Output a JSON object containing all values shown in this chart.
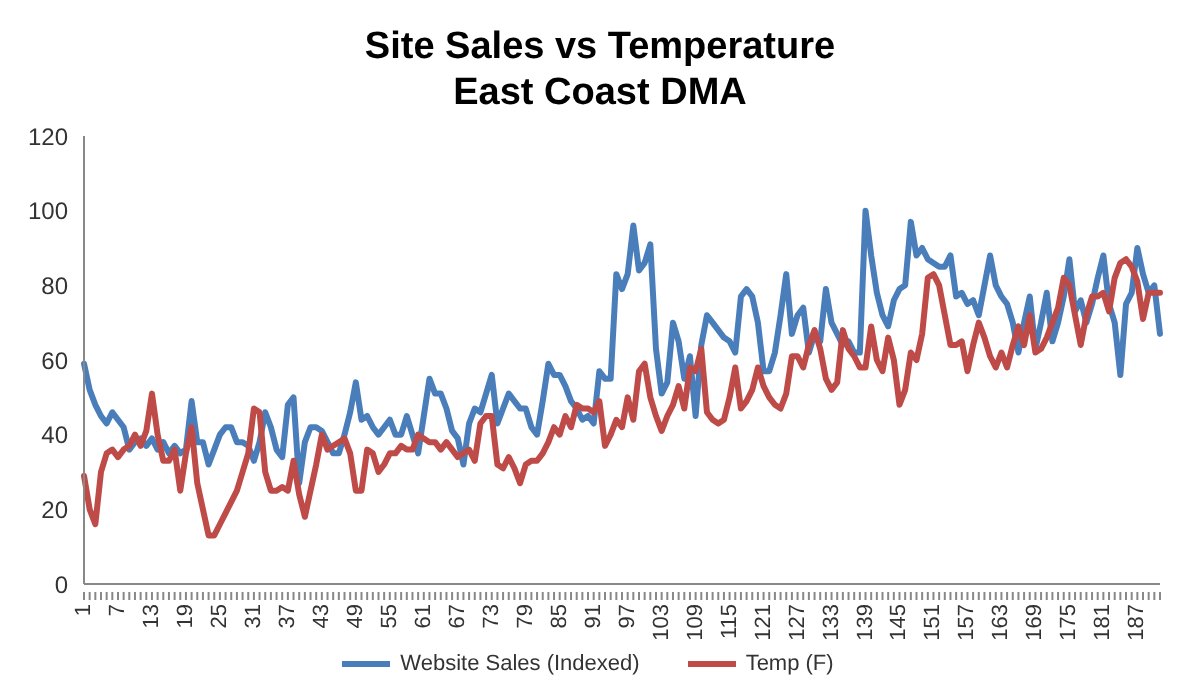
{
  "chart_data": {
    "type": "line",
    "title": "Site Sales vs Temperature",
    "subtitle": "East Coast DMA",
    "categories": [
      "1",
      null,
      null,
      null,
      null,
      null,
      "7",
      null,
      null,
      null,
      null,
      null,
      "13",
      null,
      null,
      null,
      null,
      null,
      "19",
      null,
      null,
      null,
      null,
      null,
      "25",
      null,
      null,
      null,
      null,
      null,
      "31",
      null,
      null,
      null,
      null,
      null,
      "37",
      null,
      null,
      null,
      null,
      null,
      "43",
      null,
      null,
      null,
      null,
      null,
      "49",
      null,
      null,
      null,
      null,
      null,
      "55",
      null,
      null,
      null,
      null,
      null,
      "61",
      null,
      null,
      null,
      null,
      null,
      "67",
      null,
      null,
      null,
      null,
      null,
      "73",
      null,
      null,
      null,
      null,
      null,
      "79",
      null,
      null,
      null,
      null,
      null,
      "85",
      null,
      null,
      null,
      null,
      null,
      "91",
      null,
      null,
      null,
      null,
      null,
      "97",
      null,
      null,
      null,
      null,
      null,
      "103",
      null,
      null,
      null,
      null,
      null,
      "109",
      null,
      null,
      null,
      null,
      null,
      "115",
      null,
      null,
      null,
      null,
      null,
      "121",
      null,
      null,
      null,
      null,
      null,
      "127",
      null,
      null,
      null,
      null,
      null,
      "133",
      null,
      null,
      null,
      null,
      null,
      "139",
      null,
      null,
      null,
      null,
      null,
      "145",
      null,
      null,
      null,
      null,
      null,
      "151",
      null,
      null,
      null,
      null,
      null,
      "157",
      null,
      null,
      null,
      null,
      null,
      "163",
      null,
      null,
      null,
      null,
      null,
      "169",
      null,
      null,
      null,
      null,
      null,
      "175",
      null,
      null,
      null,
      null,
      null,
      "181",
      null,
      null,
      null,
      null,
      null,
      "187",
      null,
      null,
      null,
      null
    ],
    "series": [
      {
        "name": "Website Sales (Indexed)",
        "color": "#4a7ebb",
        "values": [
          59,
          52,
          48,
          45,
          43,
          46,
          44,
          42,
          36,
          38,
          39,
          37,
          39,
          36,
          38,
          35,
          37,
          35,
          36,
          49,
          38,
          38,
          32,
          36,
          40,
          42,
          42,
          38,
          38,
          37,
          33,
          38,
          46,
          42,
          36,
          34,
          48,
          50,
          27,
          38,
          42,
          42,
          41,
          38,
          35,
          35,
          40,
          46,
          54,
          44,
          45,
          42,
          40,
          42,
          44,
          40,
          40,
          45,
          40,
          35,
          45,
          55,
          51,
          51,
          47,
          41,
          39,
          32,
          43,
          47,
          46,
          51,
          56,
          43,
          47,
          51,
          49,
          47,
          47,
          42,
          40,
          49,
          59,
          56,
          56,
          53,
          49,
          47,
          44,
          45,
          43,
          57,
          55,
          55,
          83,
          79,
          83,
          96,
          84,
          86,
          91,
          63,
          51,
          54,
          70,
          65,
          55,
          61,
          45,
          64,
          72,
          70,
          68,
          66,
          65,
          62,
          77,
          79,
          77,
          70,
          57,
          57,
          62,
          72,
          83,
          67,
          72,
          74,
          62,
          67,
          65,
          79,
          70,
          67,
          64,
          65,
          62,
          62,
          100,
          88,
          78,
          72,
          69,
          76,
          79,
          80,
          97,
          88,
          90,
          87,
          86,
          85,
          85,
          88,
          77,
          78,
          75,
          76,
          72,
          80,
          88,
          80,
          77,
          75,
          70,
          62,
          70,
          77,
          63,
          70,
          78,
          65,
          70,
          77,
          87,
          73,
          76,
          70,
          75,
          82,
          88,
          75,
          70,
          56,
          75,
          78,
          90,
          83,
          78,
          80,
          67
        ]
      },
      {
        "name": "Temp (F)",
        "color": "#be4b48",
        "values": [
          29,
          20,
          16,
          30,
          35,
          36,
          34,
          36,
          37,
          40,
          37,
          41,
          51,
          40,
          33,
          33,
          36,
          25,
          35,
          42,
          27,
          20,
          13,
          13,
          16,
          19,
          22,
          25,
          30,
          35,
          47,
          46,
          30,
          25,
          25,
          26,
          25,
          33,
          24,
          18,
          25,
          32,
          40,
          36,
          37,
          38,
          39,
          35,
          25,
          25,
          36,
          35,
          30,
          32,
          35,
          35,
          37,
          36,
          36,
          40,
          39,
          38,
          38,
          36,
          38,
          36,
          34,
          35,
          36,
          33,
          43,
          45,
          45,
          32,
          31,
          34,
          31,
          27,
          32,
          33,
          33,
          35,
          38,
          42,
          40,
          45,
          42,
          48,
          47,
          47,
          46,
          49,
          37,
          40,
          44,
          42,
          50,
          44,
          57,
          59,
          50,
          45,
          41,
          45,
          48,
          53,
          47,
          58,
          57,
          63,
          46,
          44,
          43,
          44,
          50,
          58,
          47,
          49,
          52,
          58,
          53,
          50,
          48,
          47,
          51,
          61,
          61,
          58,
          64,
          68,
          63,
          55,
          52,
          54,
          68,
          63,
          61,
          58,
          58,
          69,
          60,
          57,
          66,
          60,
          48,
          52,
          62,
          60,
          67,
          82,
          83,
          80,
          72,
          64,
          64,
          65,
          57,
          64,
          70,
          66,
          61,
          58,
          62,
          58,
          64,
          69,
          64,
          72,
          62,
          63,
          66,
          70,
          74,
          82,
          80,
          72,
          64,
          72,
          77,
          77,
          78,
          73,
          82,
          86,
          87,
          85,
          81,
          71,
          78,
          78,
          78
        ]
      }
    ],
    "ylim": [
      0,
      120
    ],
    "yticks": [
      0,
      20,
      40,
      60,
      80,
      100,
      120
    ],
    "grid": false,
    "legend": "bottom",
    "marker": "none",
    "line_style": "solid"
  }
}
